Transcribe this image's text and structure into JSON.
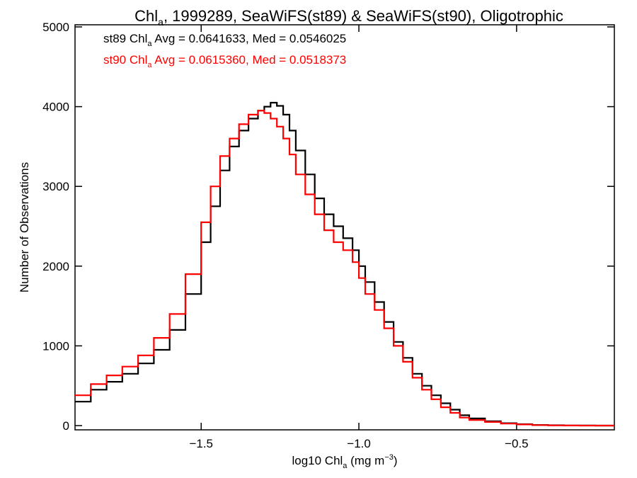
{
  "chart_data": {
    "type": "line",
    "step": true,
    "title": {
      "pre": "Chl",
      "sub": "a",
      "post": ", 1999289, SeaWiFS(st89) & SeaWiFS(st90), Oligotrophic"
    },
    "xlabel": {
      "pre": "log10 Chl",
      "sub": "a",
      "mid": " (mg m",
      "sup": "−3",
      "post": ")"
    },
    "ylabel": "Number of Observations",
    "xlim": [
      -1.9,
      -0.19
    ],
    "ylim": [
      0,
      5000
    ],
    "xticks": [
      -1.5,
      -1.0,
      -0.5
    ],
    "xtick_labels": [
      "−1.5",
      "−1.0",
      "−0.5"
    ],
    "yticks": [
      0,
      1000,
      2000,
      3000,
      4000,
      5000
    ],
    "ytick_labels": [
      "0",
      "1000",
      "2000",
      "3000",
      "4000",
      "5000"
    ],
    "annotations": [
      {
        "pre": "st89 Chl",
        "sub": "a",
        "post": " Avg = 0.0641633, Med = 0.0546025",
        "color": "#000000"
      },
      {
        "pre": "st90 Chl",
        "sub": "a",
        "post": " Avg = 0.0615360, Med = 0.0518373",
        "color": "#ff0000"
      }
    ],
    "series": [
      {
        "color": "#000000",
        "x": [
          -1.9,
          -1.85,
          -1.8,
          -1.75,
          -1.7,
          -1.65,
          -1.6,
          -1.55,
          -1.5,
          -1.47,
          -1.44,
          -1.41,
          -1.38,
          -1.35,
          -1.32,
          -1.3,
          -1.28,
          -1.26,
          -1.24,
          -1.22,
          -1.2,
          -1.17,
          -1.14,
          -1.11,
          -1.08,
          -1.05,
          -1.02,
          -1.0,
          -0.98,
          -0.95,
          -0.92,
          -0.89,
          -0.86,
          -0.83,
          -0.8,
          -0.77,
          -0.74,
          -0.71,
          -0.68,
          -0.65,
          -0.6,
          -0.55,
          -0.5,
          -0.45,
          -0.4,
          -0.35,
          -0.3,
          -0.25,
          -0.19
        ],
        "y": [
          300,
          450,
          550,
          650,
          780,
          950,
          1200,
          1650,
          2300,
          2750,
          3200,
          3500,
          3700,
          3850,
          3950,
          4000,
          4050,
          4010,
          3900,
          3700,
          3450,
          3150,
          2850,
          2650,
          2500,
          2350,
          2200,
          2000,
          1800,
          1550,
          1300,
          1050,
          850,
          650,
          500,
          380,
          280,
          200,
          130,
          90,
          55,
          30,
          18,
          8,
          4,
          2,
          1,
          0,
          0
        ]
      },
      {
        "color": "#ff0000",
        "x": [
          -1.9,
          -1.85,
          -1.8,
          -1.75,
          -1.7,
          -1.65,
          -1.6,
          -1.55,
          -1.5,
          -1.47,
          -1.44,
          -1.41,
          -1.38,
          -1.35,
          -1.32,
          -1.3,
          -1.28,
          -1.26,
          -1.24,
          -1.22,
          -1.2,
          -1.17,
          -1.14,
          -1.11,
          -1.08,
          -1.05,
          -1.02,
          -1.0,
          -0.98,
          -0.95,
          -0.92,
          -0.89,
          -0.86,
          -0.83,
          -0.8,
          -0.77,
          -0.74,
          -0.71,
          -0.68,
          -0.65,
          -0.6,
          -0.55,
          -0.5,
          -0.45,
          -0.4,
          -0.35,
          -0.3,
          -0.25,
          -0.19
        ],
        "y": [
          380,
          520,
          630,
          740,
          880,
          1100,
          1400,
          1900,
          2550,
          3000,
          3380,
          3600,
          3780,
          3900,
          3950,
          3920,
          3850,
          3750,
          3600,
          3400,
          3150,
          2900,
          2650,
          2450,
          2300,
          2200,
          2050,
          1850,
          1650,
          1450,
          1220,
          1000,
          800,
          600,
          450,
          330,
          230,
          160,
          100,
          70,
          45,
          25,
          14,
          6,
          3,
          1,
          0,
          0,
          0
        ]
      }
    ]
  }
}
